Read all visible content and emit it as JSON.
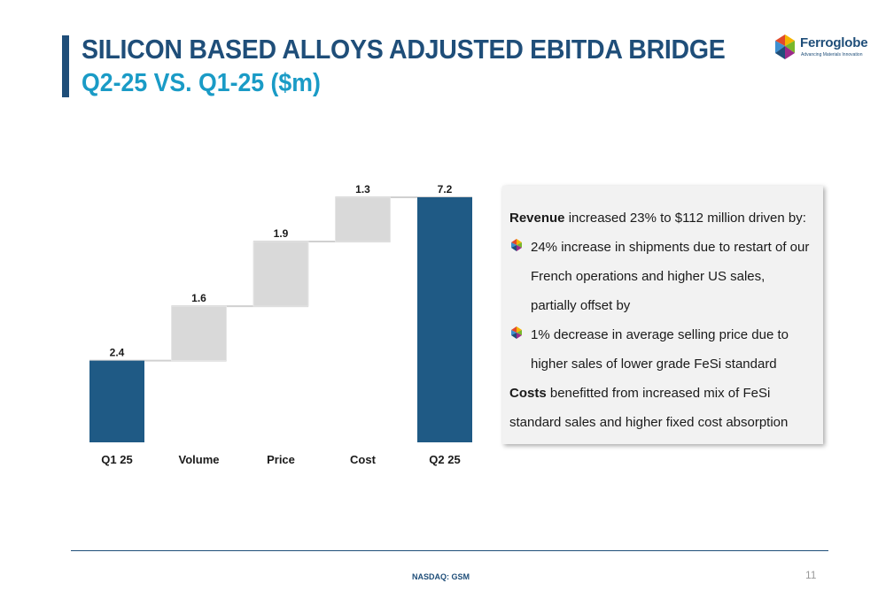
{
  "header": {
    "title": "SILICON BASED ALLOYS ADJUSTED EBITDA BRIDGE",
    "subtitle": "Q2-25 VS. Q1-25 ($m)"
  },
  "logo": {
    "name": "Ferroglobe",
    "tagline": "Advancing Materials Innovation"
  },
  "colors": {
    "total_bar": "#1f5a85",
    "step_bar": "#d9d9d9",
    "title": "#1f4e79",
    "subtitle": "#1a9bc6"
  },
  "chart_data": {
    "type": "bar",
    "subtype": "waterfall",
    "categories": [
      "Q1 25",
      "Volume",
      "Price",
      "Cost",
      "Q2 25"
    ],
    "values": [
      2.4,
      1.6,
      1.9,
      1.3,
      7.2
    ],
    "labels": [
      "2.4",
      "1.6",
      "1.9",
      "1.3",
      "7.2"
    ],
    "kinds": [
      "total",
      "delta",
      "delta",
      "delta",
      "total"
    ],
    "ylim": [
      0,
      7.2
    ],
    "grid": false,
    "legend": "none"
  },
  "info": {
    "p1_bold": "Revenue",
    "p1_rest": " increased 23% to $112 million driven by:",
    "bullet1": "24% increase in shipments due to restart of our French operations and higher US sales, partially offset by",
    "bullet2": "1% decrease in average selling price due to higher sales of lower grade FeSi standard",
    "p2_bold": "Costs",
    "p2_rest": " benefitted from increased mix of FeSi standard sales and higher fixed cost absorption"
  },
  "footer": {
    "ticker": "NASDAQ: GSM",
    "page": "11"
  }
}
